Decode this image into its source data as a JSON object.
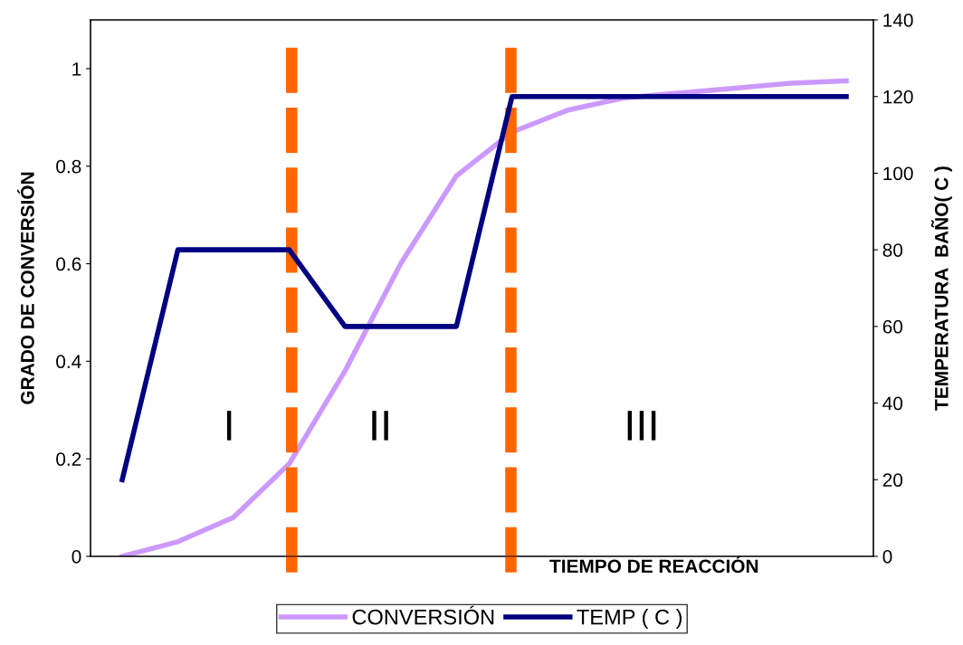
{
  "chart_data": {
    "type": "line",
    "xlabel": "TIEMPO DE REACCIÓN",
    "ylabel": "GRADO DE CONVERSIÓN",
    "y2label": "TEMPERATURA  BAÑO( C )",
    "categories": [
      null,
      null,
      null,
      null,
      null,
      null,
      null,
      null,
      null,
      null,
      null,
      null,
      null,
      null
    ],
    "ylim": [
      0,
      1.1
    ],
    "yticks": [
      0,
      0.2,
      0.4,
      0.6,
      0.8,
      1
    ],
    "y2lim": [
      0,
      140
    ],
    "y2ticks": [
      0,
      20,
      40,
      60,
      80,
      100,
      120,
      140
    ],
    "series": [
      {
        "name": "CONVERSIÓN",
        "color": "#cc99ff",
        "values": [
          0,
          0.03,
          0.08,
          0.19,
          0.38,
          0.6,
          0.78,
          0.87,
          0.915,
          0.94,
          0.95,
          0.96,
          0.97,
          0.975
        ]
      },
      {
        "name": "TEMP ( C )",
        "color": "#000080",
        "axis": "y2",
        "values": [
          20,
          80,
          80,
          80,
          60,
          60,
          60,
          120,
          120,
          120,
          120,
          120,
          120,
          120
        ]
      }
    ],
    "annotations": [
      "I",
      "II",
      "III"
    ],
    "grid": false,
    "legend": "bottom",
    "line_style": "solid"
  }
}
